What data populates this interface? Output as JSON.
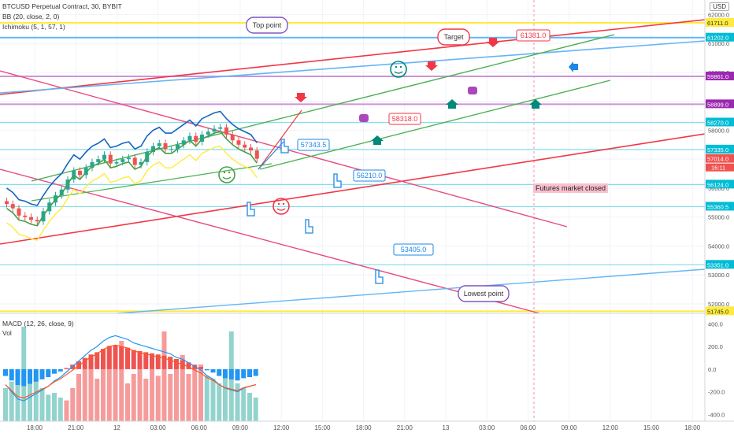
{
  "header": {
    "symbol_line": "BTCUSD Perpetual Contract, 30, BYBIT",
    "bb_line": "BB (20, close, 2, 0)",
    "ichimoku_line": "Ichimoku (5, 1, 57, 1)",
    "currency": "USD"
  },
  "macd_panel": {
    "macd_line": "MACD (12, 26, close, 9)",
    "vol_label": "Vol"
  },
  "annotations": {
    "top_point": "Top point",
    "target": "Target",
    "lowest_point": "Lowest point",
    "futures_closed": "Futures market closed",
    "label_61381": "61381.0",
    "label_58318": "58318.0",
    "label_57343": "57343.5",
    "label_56210": "56210.0",
    "label_53405": "53405.0"
  },
  "colors": {
    "up": "#26a69a",
    "down": "#ef5350",
    "trend_red": "#f23645",
    "trend_green": "#4caf50",
    "trend_blue": "#2196f3",
    "pink": "#e84b7d",
    "yellow_line": "#ffeb3b",
    "cyan_line": "#00bcd4",
    "macd_blue": "#2196f3",
    "signal_red": "#ff5722"
  },
  "chart_data": [
    {
      "type": "line",
      "title": "BTCUSD Perpetual Contract, 30, BYBIT",
      "y_axis_ticks": [
        "62000.0",
        "61000.0",
        "60000.0",
        "59000.0",
        "58000.0",
        "57000.0",
        "56000.0",
        "55000.0",
        "54000.0",
        "53000.0",
        "52000.0"
      ],
      "x_axis_ticks": [
        "18:00",
        "21:00",
        "12",
        "03:00",
        "06:00",
        "09:00",
        "12:00",
        "15:00",
        "18:00",
        "21:00",
        "13",
        "03:00",
        "06:00",
        "09:00",
        "12:00",
        "15:00",
        "18:00"
      ],
      "ylim": [
        51700,
        62500
      ],
      "price_labels": [
        {
          "value": 61711.0,
          "text": "61711.0",
          "color": "#ffeb3b"
        },
        {
          "value": 61202.0,
          "text": "61202.0",
          "color": "#00bcd4"
        },
        {
          "value": 59861.0,
          "text": "59861.0",
          "color": "#9c27b0"
        },
        {
          "value": 58899.0,
          "text": "58899.0",
          "color": "#9c27b0"
        },
        {
          "value": 58270.0,
          "text": "58270.0",
          "color": "#00bcd4"
        },
        {
          "value": 57335.0,
          "text": "57335.0",
          "color": "#00bcd4"
        },
        {
          "value": 57014.0,
          "text": "57014.0",
          "color": "#ef5350"
        },
        {
          "value": 56124.0,
          "text": "56124.0",
          "color": "#00bcd4"
        },
        {
          "value": 55360.5,
          "text": "55360.5",
          "color": "#00bcd4"
        },
        {
          "value": 53351.0,
          "text": "53351.0",
          "color": "#00bcd4"
        },
        {
          "value": 51745.0,
          "text": "51745.0",
          "color": "#ffeb3b"
        }
      ],
      "countdown": "16:11",
      "series": [
        {
          "name": "close",
          "values": [
            55450,
            55300,
            55050,
            55000,
            54900,
            54850,
            55200,
            55500,
            55750,
            55950,
            56300,
            56600,
            56450,
            56700,
            56900,
            57000,
            57150,
            56850,
            56900,
            57000,
            57050,
            56800,
            56900,
            57250,
            57450,
            57550,
            57350,
            57350,
            57500,
            57650,
            57800,
            57600,
            57850,
            57950,
            58050,
            58100,
            57850,
            57650,
            57500,
            57400,
            57300,
            57014
          ]
        }
      ]
    },
    {
      "type": "bar",
      "title": "MACD (12, 26, close, 9)",
      "y_axis_ticks": [
        "400.0",
        "200.0",
        "0.0",
        "-200.0",
        "-400.0"
      ],
      "ylim": [
        -460,
        480
      ],
      "series": [
        {
          "name": "Vol",
          "values": [
            0.35,
            0.42,
            0.55,
            1.0,
            0.4,
            0.45,
            0.35,
            0.28,
            0.3,
            0.25,
            0.22,
            0.35,
            0.5,
            0.55,
            0.6,
            0.45,
            0.75,
            0.8,
            0.55,
            0.85,
            0.4,
            0.5,
            0.6,
            0.45,
            0.55,
            0.48,
            0.95,
            0.5,
            0.58,
            0.7,
            0.5,
            0.55,
            0.6,
            0.48,
            0.45,
            0.4,
            0.55,
            0.95,
            0.4,
            0.35,
            0.3,
            0.25
          ]
        },
        {
          "name": "histogram",
          "values": [
            -60,
            -100,
            -140,
            -150,
            -130,
            -110,
            -90,
            -70,
            -40,
            -20,
            10,
            40,
            70,
            100,
            130,
            150,
            180,
            200,
            210,
            200,
            190,
            170,
            160,
            150,
            140,
            130,
            120,
            110,
            90,
            80,
            60,
            40,
            20,
            -10,
            -30,
            -60,
            -80,
            -90,
            -100,
            -80,
            -70,
            -60
          ]
        }
      ]
    }
  ]
}
